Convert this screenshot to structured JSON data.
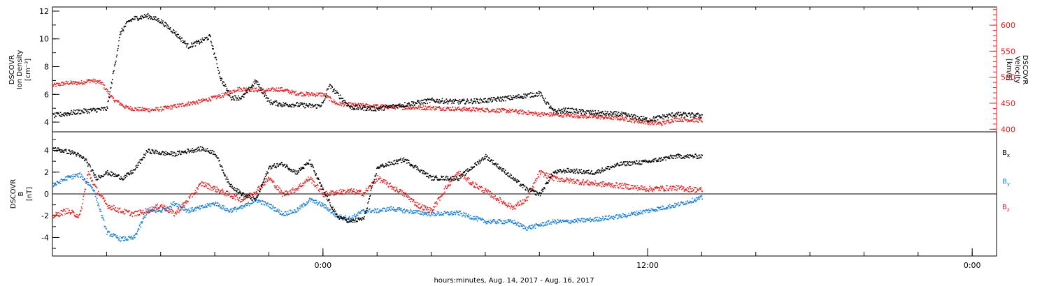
{
  "xaxis": {
    "label": "hours:minutes, Aug. 14, 2017 - Aug. 16, 2017",
    "ticks": [
      {
        "hours": 24,
        "label": "0:00"
      },
      {
        "hours": 36,
        "label": "12:00"
      },
      {
        "hours": 48,
        "label": "0:00"
      }
    ],
    "range_hours": [
      14,
      48.9
    ],
    "data_end_hours": 38.0
  },
  "panels": {
    "top": {
      "left_axis": {
        "lines": [
          "DSCOVR",
          "Ion Density",
          "[cm⁻³]"
        ],
        "ticks": [
          "4",
          "6",
          "8",
          "10",
          "12"
        ],
        "range": [
          3.3,
          12.3
        ],
        "color": "#000000"
      },
      "right_axis": {
        "lines": [
          "DSCOVR",
          "Velocity",
          "[km/s]"
        ],
        "ticks": [
          "400",
          "450",
          "500",
          "550",
          "600"
        ],
        "range": [
          395,
          635
        ],
        "color": "#e02020"
      }
    },
    "bottom": {
      "left_axis": {
        "lines": [
          "DSCOVR",
          "B",
          "[nT]"
        ],
        "ticks": [
          "-4",
          "-2",
          "0",
          "2",
          "4"
        ],
        "range": [
          -5.7,
          5.7
        ],
        "color": "#000000"
      },
      "legend": [
        {
          "text": "B",
          "sub": "x",
          "color": "#000000"
        },
        {
          "text": "B",
          "sub": "y",
          "color": "#1a7fd4"
        },
        {
          "text": "B",
          "sub": "z",
          "color": "#e02020"
        }
      ]
    }
  },
  "chart_data": [
    {
      "type": "scatter",
      "series": [
        {
          "name": "Ion Density",
          "axis": "left",
          "color": "#000000",
          "x": [
            14.0,
            15.0,
            16.0,
            16.5,
            16.8,
            17.0,
            17.5,
            18.0,
            18.5,
            19.0,
            19.4,
            19.8,
            20.2,
            20.6,
            21.0,
            21.5,
            22.0,
            22.5,
            23.0,
            23.5,
            23.8,
            24.0,
            24.2,
            25.0,
            26.0,
            27.0,
            28.0,
            29.0,
            30.0,
            31.0,
            32.0,
            32.5,
            33.0,
            34.0,
            35.0,
            36.0,
            37.0,
            38.0
          ],
          "y": [
            4.5,
            4.8,
            5.0,
            10.5,
            11.3,
            11.5,
            11.7,
            11.3,
            10.5,
            9.5,
            9.8,
            10.2,
            7.2,
            5.8,
            5.8,
            7.0,
            5.5,
            5.3,
            5.3,
            5.2,
            5.2,
            5.4,
            6.7,
            5.1,
            5.0,
            5.3,
            5.6,
            5.5,
            5.6,
            5.8,
            6.1,
            4.8,
            4.9,
            4.7,
            4.6,
            4.2,
            4.6,
            4.5
          ]
        },
        {
          "name": "Velocity",
          "axis": "right",
          "color": "#e02020",
          "x": [
            14.0,
            14.5,
            15.0,
            15.4,
            15.8,
            16.2,
            16.7,
            17.0,
            17.6,
            18.0,
            18.5,
            19.0,
            19.5,
            20.0,
            20.4,
            20.8,
            21.2,
            21.8,
            22.4,
            23.0,
            23.5,
            24.0,
            24.5,
            25.0,
            26.0,
            27.0,
            28.0,
            29.0,
            30.0,
            31.0,
            32.0,
            33.0,
            34.0,
            35.0,
            35.8,
            36.5,
            37.0,
            38.0
          ],
          "y": [
            485,
            490,
            490,
            495,
            490,
            460,
            443,
            440,
            438,
            440,
            445,
            450,
            455,
            462,
            468,
            478,
            478,
            475,
            478,
            470,
            468,
            468,
            450,
            448,
            445,
            443,
            442,
            440,
            438,
            436,
            430,
            428,
            425,
            422,
            415,
            412,
            420,
            418
          ]
        }
      ]
    },
    {
      "type": "scatter",
      "series": [
        {
          "name": "Bx",
          "color": "#000000",
          "x": [
            14.0,
            14.8,
            15.2,
            15.6,
            16.0,
            16.6,
            17.0,
            17.5,
            18.0,
            18.5,
            19.0,
            19.5,
            20.0,
            20.5,
            21.0,
            21.5,
            22.0,
            22.5,
            23.0,
            23.5,
            24.0,
            24.5,
            25.0,
            25.5,
            26.0,
            27.0,
            28.0,
            29.0,
            29.5,
            30.0,
            30.5,
            31.0,
            31.5,
            32.0,
            32.5,
            33.0,
            34.0,
            35.0,
            36.0,
            37.0,
            38.0
          ],
          "y": [
            4.2,
            3.8,
            3.2,
            1.5,
            2.0,
            1.5,
            2.2,
            4.0,
            3.8,
            3.7,
            4.0,
            4.2,
            3.8,
            1.0,
            0.0,
            -0.5,
            2.5,
            2.8,
            2.0,
            3.0,
            0.3,
            -2.0,
            -2.5,
            -2.2,
            2.5,
            3.2,
            1.5,
            1.5,
            2.5,
            3.5,
            2.5,
            1.5,
            0.5,
            0.0,
            2.0,
            2.2,
            2.0,
            2.8,
            3.0,
            3.5,
            3.5
          ]
        },
        {
          "name": "By",
          "color": "#1a7fd4",
          "x": [
            14.0,
            14.5,
            15.0,
            15.5,
            16.0,
            16.5,
            17.0,
            17.5,
            18.0,
            18.5,
            19.0,
            19.5,
            20.0,
            20.5,
            21.0,
            21.5,
            22.0,
            22.5,
            23.0,
            23.5,
            24.0,
            24.5,
            25.0,
            25.5,
            26.0,
            26.5,
            27.0,
            28.0,
            29.0,
            30.0,
            31.0,
            31.5,
            32.0,
            32.5,
            33.0,
            34.0,
            35.0,
            36.0,
            37.0,
            38.0
          ],
          "y": [
            0.8,
            1.5,
            1.8,
            0.5,
            -3.5,
            -4.1,
            -4.0,
            -1.5,
            -1.5,
            -0.8,
            -1.5,
            -1.2,
            -0.8,
            -1.5,
            -1.2,
            -0.5,
            -1.0,
            -1.8,
            -1.5,
            -0.5,
            -1.0,
            -2.0,
            -2.2,
            -1.5,
            -1.5,
            -1.3,
            -1.5,
            -1.8,
            -1.7,
            -2.5,
            -2.5,
            -3.1,
            -2.8,
            -2.5,
            -2.5,
            -2.3,
            -2.0,
            -1.5,
            -1.0,
            -0.3
          ]
        },
        {
          "name": "Bz",
          "color": "#e02020",
          "x": [
            14.0,
            14.5,
            15.0,
            15.3,
            15.6,
            16.0,
            16.5,
            17.0,
            17.5,
            18.0,
            18.5,
            19.0,
            19.5,
            20.0,
            20.5,
            21.0,
            21.5,
            22.0,
            22.5,
            23.0,
            23.5,
            24.0,
            24.5,
            25.0,
            25.5,
            26.0,
            27.0,
            27.5,
            28.0,
            28.5,
            29.0,
            29.5,
            30.0,
            30.5,
            31.0,
            31.5,
            32.0,
            32.5,
            33.0,
            34.0,
            35.0,
            36.0,
            37.0,
            38.0
          ],
          "y": [
            -2.0,
            -1.5,
            -2.0,
            2.0,
            0.5,
            -1.0,
            -1.5,
            -1.8,
            -1.5,
            -1.0,
            -1.8,
            -0.5,
            1.0,
            0.5,
            0.0,
            -0.5,
            0.3,
            1.5,
            0.0,
            0.5,
            1.5,
            0.0,
            0.2,
            0.3,
            0.1,
            1.5,
            0.0,
            -1.0,
            -1.5,
            0.5,
            2.0,
            1.0,
            0.3,
            -0.5,
            -1.2,
            -0.5,
            2.0,
            1.5,
            1.3,
            1.0,
            0.8,
            0.5,
            0.6,
            0.4
          ]
        }
      ]
    }
  ]
}
